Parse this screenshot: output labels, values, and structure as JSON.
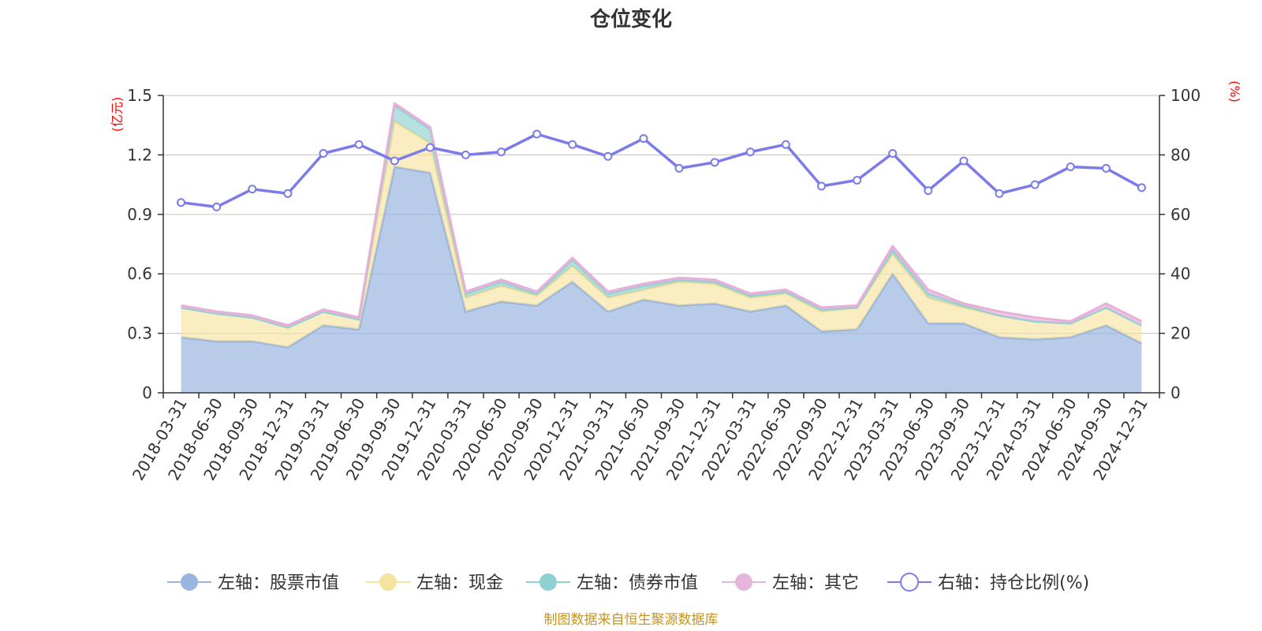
{
  "chart_data": {
    "type": "area",
    "title": "仓位变化",
    "left_axis": {
      "unit": "(亿元)",
      "min": 0,
      "max": 1.5,
      "ticks": [
        "0",
        "0.3",
        "0.6",
        "0.9",
        "1.2",
        "1.5"
      ]
    },
    "right_axis": {
      "unit": "(%)",
      "min": 0,
      "max": 100,
      "ticks": [
        "0",
        "20",
        "40",
        "60",
        "80",
        "100"
      ]
    },
    "categories": [
      "2018-03-31",
      "2018-06-30",
      "2018-09-30",
      "2018-12-31",
      "2019-03-31",
      "2019-06-30",
      "2019-09-30",
      "2019-12-31",
      "2020-03-31",
      "2020-06-30",
      "2020-09-30",
      "2020-12-31",
      "2021-03-31",
      "2021-06-30",
      "2021-09-30",
      "2021-12-31",
      "2022-03-31",
      "2022-06-30",
      "2022-09-30",
      "2022-12-31",
      "2023-03-31",
      "2023-06-30",
      "2023-09-30",
      "2023-12-31",
      "2024-03-31",
      "2024-06-30",
      "2024-09-30",
      "2024-12-31"
    ],
    "series": [
      {
        "name": "左轴：股票市值",
        "axis": "left",
        "color": "#9ab5e0",
        "values": [
          0.28,
          0.26,
          0.26,
          0.23,
          0.34,
          0.32,
          1.14,
          1.11,
          0.41,
          0.46,
          0.44,
          0.56,
          0.41,
          0.47,
          0.44,
          0.45,
          0.41,
          0.44,
          0.31,
          0.32,
          0.6,
          0.35,
          0.35,
          0.28,
          0.27,
          0.28,
          0.34,
          0.25
        ]
      },
      {
        "name": "左轴：现金",
        "axis": "left",
        "color": "#f6e3a0",
        "values": [
          0.15,
          0.14,
          0.12,
          0.1,
          0.07,
          0.05,
          0.23,
          0.15,
          0.07,
          0.08,
          0.05,
          0.08,
          0.07,
          0.05,
          0.12,
          0.1,
          0.07,
          0.06,
          0.1,
          0.11,
          0.1,
          0.13,
          0.08,
          0.11,
          0.09,
          0.07,
          0.09,
          0.09
        ]
      },
      {
        "name": "左轴：债券市值",
        "axis": "left",
        "color": "#8fd1d1",
        "values": [
          0,
          0,
          0,
          0,
          0,
          0,
          0.08,
          0.07,
          0.02,
          0.02,
          0.01,
          0.03,
          0.02,
          0.02,
          0.01,
          0.01,
          0.01,
          0.01,
          0.01,
          0,
          0.02,
          0.02,
          0.01,
          0,
          0,
          0,
          0,
          0
        ]
      },
      {
        "name": "左轴：其它",
        "axis": "left",
        "color": "#e6b5db",
        "values": [
          0.01,
          0.01,
          0.01,
          0.01,
          0.01,
          0.01,
          0.01,
          0.01,
          0.01,
          0.01,
          0.01,
          0.01,
          0.01,
          0.01,
          0.01,
          0.01,
          0.01,
          0.01,
          0.01,
          0.01,
          0.02,
          0.02,
          0.01,
          0.02,
          0.02,
          0.01,
          0.02,
          0.02
        ]
      },
      {
        "name": "右轴：持仓比例(%)",
        "axis": "right",
        "color": "#7b7bea",
        "values": [
          64,
          62.5,
          68.5,
          67,
          80.5,
          83.5,
          78,
          82.5,
          80,
          81,
          87,
          83.5,
          79.5,
          85.5,
          75.5,
          77.5,
          81,
          83.5,
          69.5,
          71.5,
          80.5,
          68,
          78,
          67,
          70,
          76,
          75.5,
          69
        ]
      }
    ]
  },
  "source": "制图数据来自恒生聚源数据库"
}
